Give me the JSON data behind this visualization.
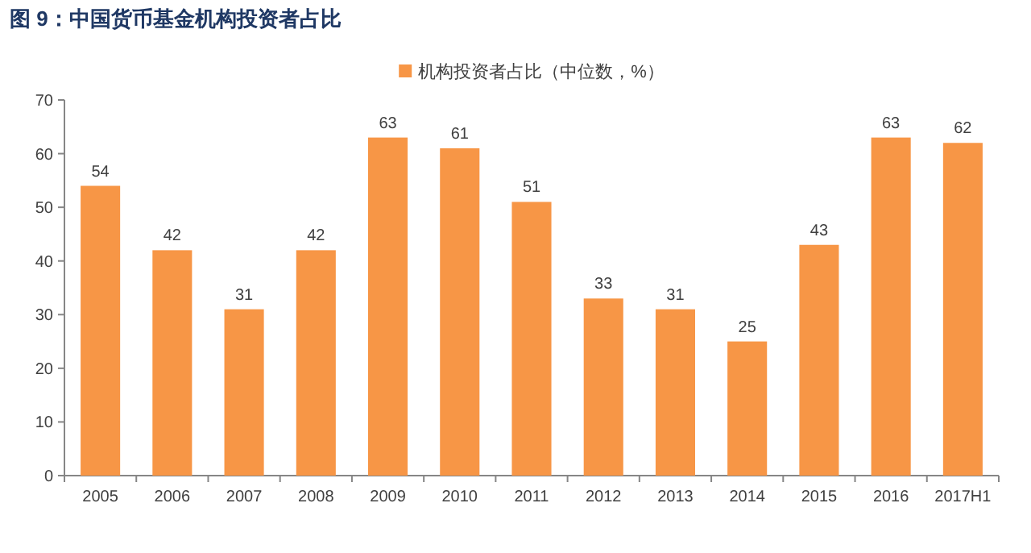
{
  "chart_data": {
    "type": "bar",
    "title": "图 9：中国货币基金机构投资者占比",
    "categories": [
      "2005",
      "2006",
      "2007",
      "2008",
      "2009",
      "2010",
      "2011",
      "2012",
      "2013",
      "2014",
      "2015",
      "2016",
      "2017H1"
    ],
    "series": [
      {
        "name": "机构投资者占比（中位数，%）",
        "color": "#f79646",
        "values": [
          54,
          42,
          31,
          42,
          63,
          61,
          51,
          33,
          31,
          25,
          43,
          63,
          62
        ]
      }
    ],
    "ylim": [
      0,
      70
    ],
    "yticks": [
      0,
      10,
      20,
      30,
      40,
      50,
      60,
      70
    ],
    "data_labels": true,
    "legend": "top",
    "grid": false
  }
}
